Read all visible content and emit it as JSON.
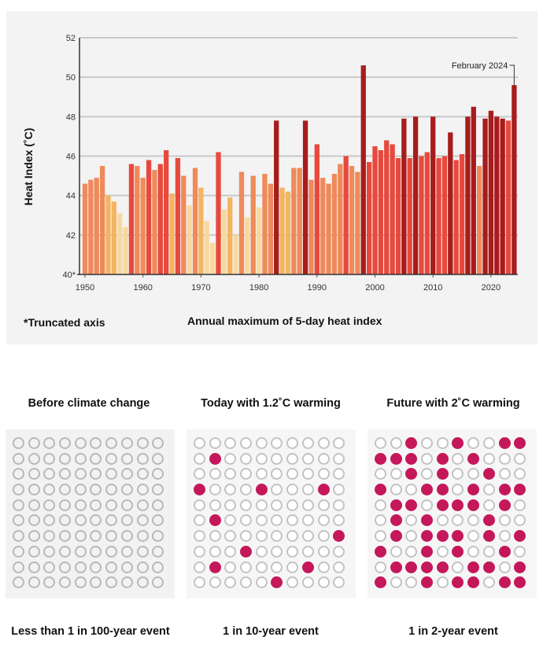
{
  "chart_data": {
    "type": "bar",
    "title": "Annual maximum of 5-day heat index",
    "xlabel": "",
    "ylabel": "Heat Index (˚C)",
    "ylim": [
      40,
      52
    ],
    "xlim": [
      1950,
      2024
    ],
    "grid": true,
    "y_ticks": [
      "40*",
      "42",
      "44",
      "46",
      "48",
      "50",
      "52"
    ],
    "y_tick_values": [
      40,
      42,
      44,
      46,
      48,
      50,
      52
    ],
    "x_ticks": [
      "1950",
      "1960",
      "1970",
      "1980",
      "1990",
      "2000",
      "2010",
      "2020"
    ],
    "x_tick_values": [
      1950,
      1960,
      1970,
      1980,
      1990,
      2000,
      2010,
      2020
    ],
    "footnote": "*Truncated axis",
    "annotation": {
      "label": "February 2024",
      "year": 2024
    },
    "color_scale": [
      "#f7d9a0",
      "#f3b562",
      "#ef8a5a",
      "#e8493d",
      "#a81c1c"
    ],
    "x": [
      1950,
      1951,
      1952,
      1953,
      1954,
      1955,
      1956,
      1957,
      1958,
      1959,
      1960,
      1961,
      1962,
      1963,
      1964,
      1965,
      1966,
      1967,
      1968,
      1969,
      1970,
      1971,
      1972,
      1973,
      1974,
      1975,
      1976,
      1977,
      1978,
      1979,
      1980,
      1981,
      1982,
      1983,
      1984,
      1985,
      1986,
      1987,
      1988,
      1989,
      1990,
      1991,
      1992,
      1993,
      1994,
      1995,
      1996,
      1997,
      1998,
      1999,
      2000,
      2001,
      2002,
      2003,
      2004,
      2005,
      2006,
      2007,
      2008,
      2009,
      2010,
      2011,
      2012,
      2013,
      2014,
      2015,
      2016,
      2017,
      2018,
      2019,
      2020,
      2021,
      2022,
      2023,
      2024
    ],
    "values": [
      44.6,
      44.8,
      44.9,
      45.5,
      44.0,
      43.7,
      43.1,
      42.4,
      45.6,
      45.5,
      44.9,
      45.8,
      45.3,
      45.6,
      46.3,
      44.1,
      45.9,
      45.0,
      43.5,
      45.4,
      44.4,
      42.7,
      41.6,
      46.2,
      43.3,
      43.9,
      42.0,
      45.2,
      42.9,
      45.0,
      43.4,
      45.1,
      44.6,
      47.8,
      44.4,
      44.2,
      45.4,
      45.4,
      47.8,
      44.8,
      46.6,
      44.9,
      44.6,
      45.1,
      45.6,
      46.0,
      45.5,
      45.2,
      50.6,
      45.7,
      46.5,
      46.3,
      46.8,
      46.6,
      45.9,
      47.9,
      45.9,
      48.0,
      46.0,
      46.2,
      48.0,
      45.9,
      46.0,
      47.2,
      45.8,
      46.1,
      48.0,
      48.5,
      45.5,
      47.9,
      48.3,
      48.0,
      47.9,
      47.8,
      49.6
    ],
    "color_class": [
      2,
      2,
      2,
      2,
      1,
      1,
      0,
      0,
      3,
      2,
      2,
      3,
      2,
      3,
      3,
      1,
      3,
      2,
      0,
      2,
      1,
      0,
      0,
      3,
      0,
      1,
      0,
      2,
      0,
      2,
      0,
      2,
      2,
      4,
      1,
      1,
      2,
      2,
      4,
      2,
      3,
      2,
      2,
      2,
      2,
      3,
      2,
      2,
      4,
      3,
      3,
      3,
      3,
      3,
      3,
      4,
      3,
      4,
      3,
      3,
      4,
      3,
      3,
      4,
      3,
      3,
      4,
      4,
      2,
      4,
      4,
      4,
      4,
      3,
      4
    ]
  },
  "notes": {
    "footnote": "*Truncated axis",
    "chart_title": "Annual maximum of 5-day heat index"
  },
  "scenarios": [
    {
      "title": "Before climate change",
      "caption": "Less than 1 in 100-year event",
      "filled_per_100": 0,
      "filled_cells": []
    },
    {
      "title": "Today with 1.2˚C warming",
      "caption": "1 in 10-year event",
      "filled_per_100": 10,
      "filled_cells": [
        [
          1,
          1
        ],
        [
          3,
          0
        ],
        [
          3,
          4
        ],
        [
          3,
          8
        ],
        [
          5,
          1
        ],
        [
          6,
          9
        ],
        [
          7,
          3
        ],
        [
          8,
          1
        ],
        [
          8,
          7
        ],
        [
          9,
          5
        ]
      ]
    },
    {
      "title": "Future with 2˚C warming",
      "caption": "1 in 2-year event",
      "filled_per_100": 50,
      "filled_cells": [
        [
          0,
          2
        ],
        [
          0,
          5
        ],
        [
          0,
          8
        ],
        [
          0,
          9
        ],
        [
          1,
          0
        ],
        [
          1,
          1
        ],
        [
          1,
          2
        ],
        [
          1,
          4
        ],
        [
          1,
          6
        ],
        [
          2,
          2
        ],
        [
          2,
          4
        ],
        [
          2,
          7
        ],
        [
          3,
          0
        ],
        [
          3,
          3
        ],
        [
          3,
          4
        ],
        [
          3,
          6
        ],
        [
          3,
          8
        ],
        [
          3,
          9
        ],
        [
          4,
          1
        ],
        [
          4,
          2
        ],
        [
          4,
          4
        ],
        [
          4,
          5
        ],
        [
          4,
          6
        ],
        [
          4,
          8
        ],
        [
          5,
          1
        ],
        [
          5,
          3
        ],
        [
          5,
          7
        ],
        [
          6,
          1
        ],
        [
          6,
          3
        ],
        [
          6,
          4
        ],
        [
          6,
          5
        ],
        [
          6,
          7
        ],
        [
          6,
          9
        ],
        [
          7,
          0
        ],
        [
          7,
          3
        ],
        [
          7,
          5
        ],
        [
          7,
          8
        ],
        [
          8,
          1
        ],
        [
          8,
          2
        ],
        [
          8,
          3
        ],
        [
          8,
          4
        ],
        [
          8,
          6
        ],
        [
          8,
          7
        ],
        [
          8,
          9
        ],
        [
          9,
          0
        ],
        [
          9,
          3
        ],
        [
          9,
          5
        ],
        [
          9,
          6
        ],
        [
          9,
          8
        ],
        [
          9,
          9
        ]
      ]
    }
  ]
}
